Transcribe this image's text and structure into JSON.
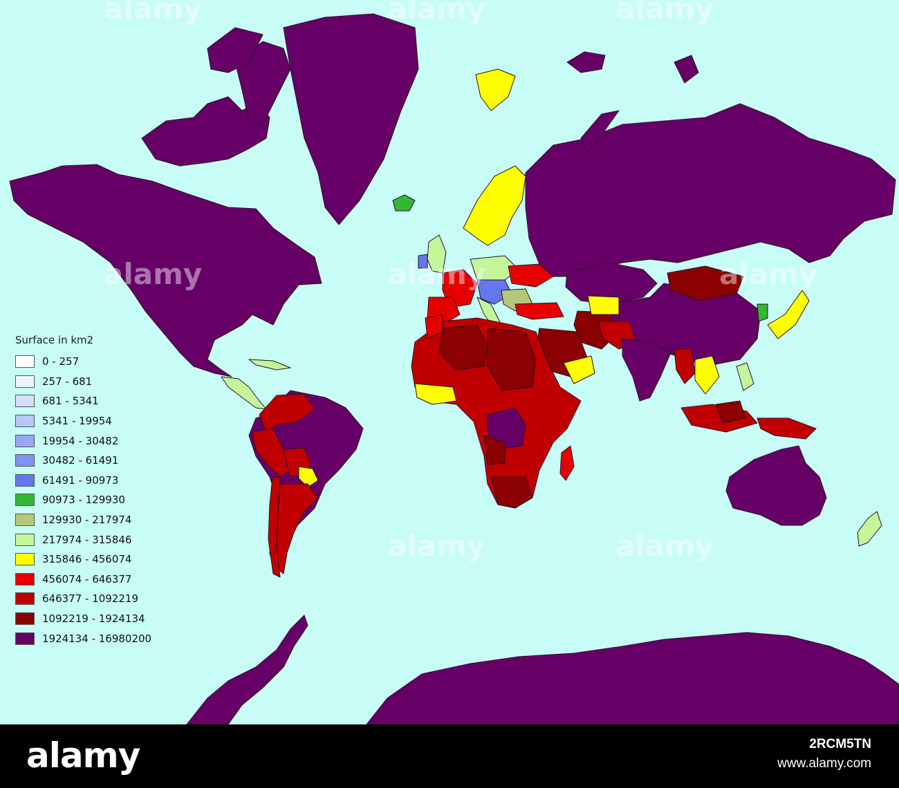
{
  "legend": {
    "title": "Surface in km2",
    "items": [
      {
        "label": "0 - 257",
        "color": "#ffffff"
      },
      {
        "label": "257 - 681",
        "color": "#eef4fd"
      },
      {
        "label": "681 - 5341",
        "color": "#d6defb"
      },
      {
        "label": "5341 - 19954",
        "color": "#b9c6f8"
      },
      {
        "label": "19954 - 30482",
        "color": "#97a8f4"
      },
      {
        "label": "30482 - 61491",
        "color": "#7f93f1"
      },
      {
        "label": "61491 - 90973",
        "color": "#6577ee"
      },
      {
        "label": "90973 - 129930",
        "color": "#33b833"
      },
      {
        "label": "129930 - 217974",
        "color": "#b6c77a"
      },
      {
        "label": "217974 - 315846",
        "color": "#c4f59a"
      },
      {
        "label": "315846 - 456074",
        "color": "#ffff00"
      },
      {
        "label": "456074 - 646377",
        "color": "#e60000"
      },
      {
        "label": "646377 - 1092219",
        "color": "#c00000"
      },
      {
        "label": "1092219 - 1924134",
        "color": "#8b0000"
      },
      {
        "label": "1924134 - 16980200",
        "color": "#660066"
      }
    ]
  },
  "colors": {
    "ocean": "#c8fcf6",
    "border": "#2a0f2a"
  },
  "watermark": "alamy",
  "footer": {
    "logo": "alamy",
    "image_id": "2RCM5TN",
    "url": "www.alamy.com"
  }
}
